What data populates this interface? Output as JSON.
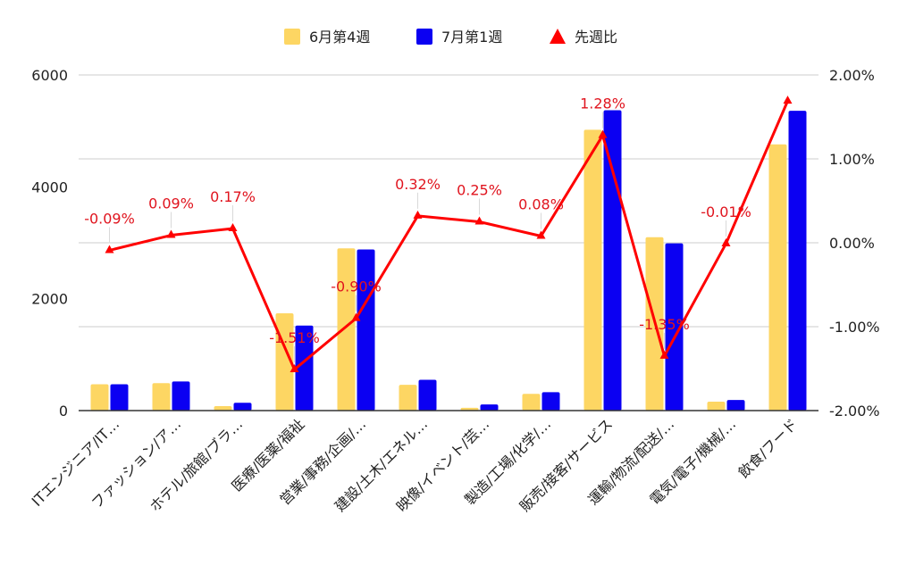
{
  "chart_data": {
    "type": "bar",
    "title": "",
    "legend_position": "top-center",
    "grid": true,
    "categories": [
      "ITエンジニア/IT…",
      "ファッション/ア…",
      "ホテル/旅館/ブラ…",
      "医療/医薬/福祉",
      "営業/事務/企画/…",
      "建設/土木/エネル…",
      "映像/イベント/芸…",
      "製造/工場/化学/…",
      "販売/接客/サービス",
      "運輸/物流/配送/…",
      "電気/電子/機械/…",
      "飲食/フード"
    ],
    "series": [
      {
        "name": "6月第4週",
        "type": "bar",
        "axis": "left",
        "color": "#fdd663",
        "values": [
          470,
          490,
          80,
          1740,
          2900,
          460,
          50,
          300,
          5020,
          3100,
          160,
          4760
        ]
      },
      {
        "name": "7月第1週",
        "type": "bar",
        "axis": "left",
        "color": "#0b00f2",
        "values": [
          470,
          520,
          140,
          1520,
          2880,
          550,
          110,
          330,
          5370,
          2990,
          190,
          5360
        ]
      },
      {
        "name": "先週比",
        "type": "line",
        "axis": "right",
        "color": "#ff0000",
        "values": [
          -0.09,
          0.09,
          0.17,
          -1.51,
          -0.9,
          0.32,
          0.25,
          0.08,
          1.28,
          -1.35,
          -0.01,
          1.69
        ],
        "labels": [
          "-0.09%",
          "0.09%",
          "0.17%",
          "-1.51%",
          "-0.90%",
          "0.32%",
          "0.25%",
          "0.08%",
          "1.28%",
          "-1.35%",
          "-0.01%",
          ""
        ]
      }
    ],
    "y_left": {
      "min": 0,
      "max": 6000,
      "ticks": [
        "0",
        "2000",
        "4000",
        "6000"
      ]
    },
    "y_right": {
      "min": -2,
      "max": 2,
      "ticks": [
        "-2.00%",
        "-1.00%",
        "0.00%",
        "1.00%",
        "2.00%"
      ]
    }
  }
}
